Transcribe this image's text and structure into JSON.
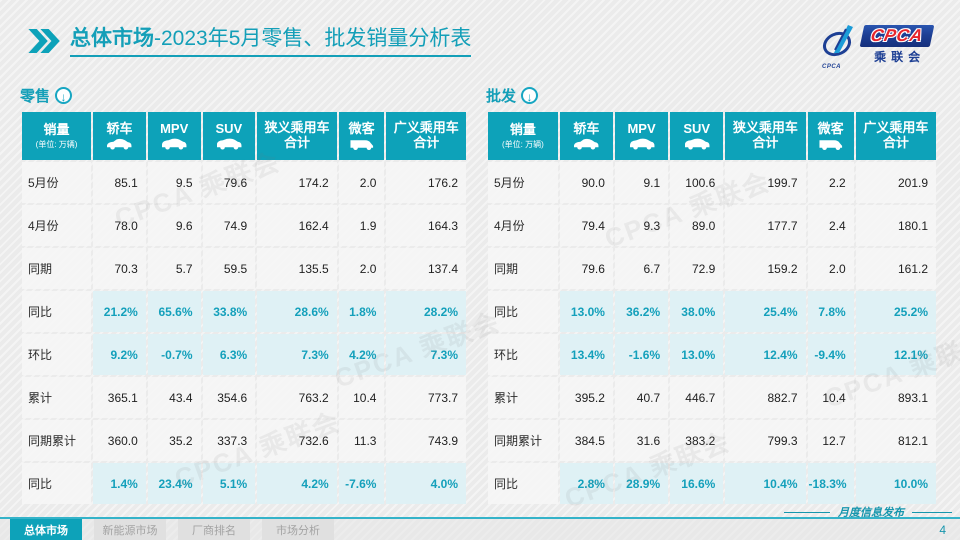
{
  "slide": {
    "title_prefix": "总体市场",
    "title_suffix": "-2023年5月零售、批发销量分析表",
    "publication_note": "月度信息发布",
    "page_number": "4",
    "watermark": "CPCA 乘联会"
  },
  "logo": {
    "acronym": "CPCA",
    "cn_name": "乘联会",
    "emblem_text": "CPCA"
  },
  "table_columns": {
    "first": {
      "title": "销量",
      "subtitle": "(单位: 万辆)"
    },
    "cols": [
      {
        "title": "轿车",
        "icon": "sedan-icon"
      },
      {
        "title": "MPV",
        "icon": "mpv-icon"
      },
      {
        "title": "SUV",
        "icon": "suv-icon"
      },
      {
        "title": "狭义乘用车",
        "line2": "合计"
      },
      {
        "title": "微客",
        "icon": "van-icon"
      },
      {
        "title": "广义乘用车",
        "line2": "合计"
      }
    ]
  },
  "retail": {
    "section_label": "零售",
    "rows": [
      {
        "label": "5月份",
        "type": "data",
        "values": [
          "85.1",
          "9.5",
          "79.6",
          "174.2",
          "2.0",
          "176.2"
        ]
      },
      {
        "label": "4月份",
        "type": "data",
        "values": [
          "78.0",
          "9.6",
          "74.9",
          "162.4",
          "1.9",
          "164.3"
        ]
      },
      {
        "label": "同期",
        "type": "data",
        "values": [
          "70.3",
          "5.7",
          "59.5",
          "135.5",
          "2.0",
          "137.4"
        ]
      },
      {
        "label": "同比",
        "type": "pct",
        "values": [
          "21.2%",
          "65.6%",
          "33.8%",
          "28.6%",
          "1.8%",
          "28.2%"
        ]
      },
      {
        "label": "环比",
        "type": "pct",
        "values": [
          "9.2%",
          "-0.7%",
          "6.3%",
          "7.3%",
          "4.2%",
          "7.3%"
        ]
      },
      {
        "label": "累计",
        "type": "data",
        "values": [
          "365.1",
          "43.4",
          "354.6",
          "763.2",
          "10.4",
          "773.7"
        ]
      },
      {
        "label": "同期累计",
        "type": "data",
        "values": [
          "360.0",
          "35.2",
          "337.3",
          "732.6",
          "11.3",
          "743.9"
        ]
      },
      {
        "label": "同比",
        "type": "pct",
        "values": [
          "1.4%",
          "23.4%",
          "5.1%",
          "4.2%",
          "-7.6%",
          "4.0%"
        ]
      }
    ]
  },
  "wholesale": {
    "section_label": "批发",
    "rows": [
      {
        "label": "5月份",
        "type": "data",
        "values": [
          "90.0",
          "9.1",
          "100.6",
          "199.7",
          "2.2",
          "201.9"
        ]
      },
      {
        "label": "4月份",
        "type": "data",
        "values": [
          "79.4",
          "9.3",
          "89.0",
          "177.7",
          "2.4",
          "180.1"
        ]
      },
      {
        "label": "同期",
        "type": "data",
        "values": [
          "79.6",
          "6.7",
          "72.9",
          "159.2",
          "2.0",
          "161.2"
        ]
      },
      {
        "label": "同比",
        "type": "pct",
        "values": [
          "13.0%",
          "36.2%",
          "38.0%",
          "25.4%",
          "7.8%",
          "25.2%"
        ]
      },
      {
        "label": "环比",
        "type": "pct",
        "values": [
          "13.4%",
          "-1.6%",
          "13.0%",
          "12.4%",
          "-9.4%",
          "12.1%"
        ]
      },
      {
        "label": "累计",
        "type": "data",
        "values": [
          "395.2",
          "40.7",
          "446.7",
          "882.7",
          "10.4",
          "893.1"
        ]
      },
      {
        "label": "同期累计",
        "type": "data",
        "values": [
          "384.5",
          "31.6",
          "383.2",
          "799.3",
          "12.7",
          "812.1"
        ]
      },
      {
        "label": "同比",
        "type": "pct",
        "values": [
          "2.8%",
          "28.9%",
          "16.6%",
          "10.4%",
          "-18.3%",
          "10.0%"
        ]
      }
    ]
  },
  "footer_tabs": [
    {
      "label": "总体市场",
      "active": true
    },
    {
      "label": "新能源市场",
      "active": false
    },
    {
      "label": "厂商排名",
      "active": false
    },
    {
      "label": "市场分析",
      "active": false
    }
  ],
  "colors": {
    "teal": "#0da2b9",
    "teal_text": "#14a0bb",
    "pct_row_bg": "#dff1f5",
    "row_bg": "#f5f5f5",
    "logo_blue": "#1d3f94",
    "logo_red": "#e8262d"
  }
}
